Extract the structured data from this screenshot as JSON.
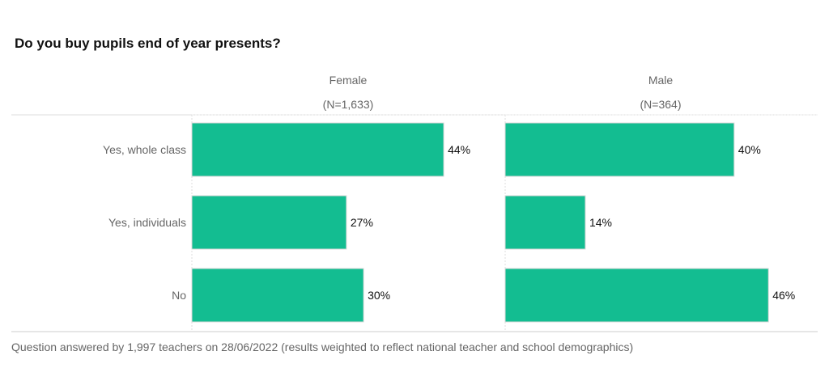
{
  "chart_data": {
    "type": "bar",
    "orientation": "horizontal",
    "title": "Do you buy pupils end of year presents?",
    "categories": [
      "Yes, whole class",
      "Yes, individuals",
      "No"
    ],
    "panels": [
      {
        "name": "Female",
        "n_label": "(N=1,633)",
        "values": [
          44,
          27,
          30
        ],
        "labels": [
          "44%",
          "27%",
          "30%"
        ]
      },
      {
        "name": "Male",
        "n_label": "(N=364)",
        "values": [
          40,
          14,
          46
        ],
        "labels": [
          "40%",
          "14%",
          "46%"
        ]
      }
    ],
    "xlim": [
      0,
      50
    ],
    "unit": "%",
    "bar_color": "#13BD91",
    "footnote": "Question answered by 1,997 teachers on 28/06/2022 (results weighted to reflect national teacher and school demographics)"
  }
}
